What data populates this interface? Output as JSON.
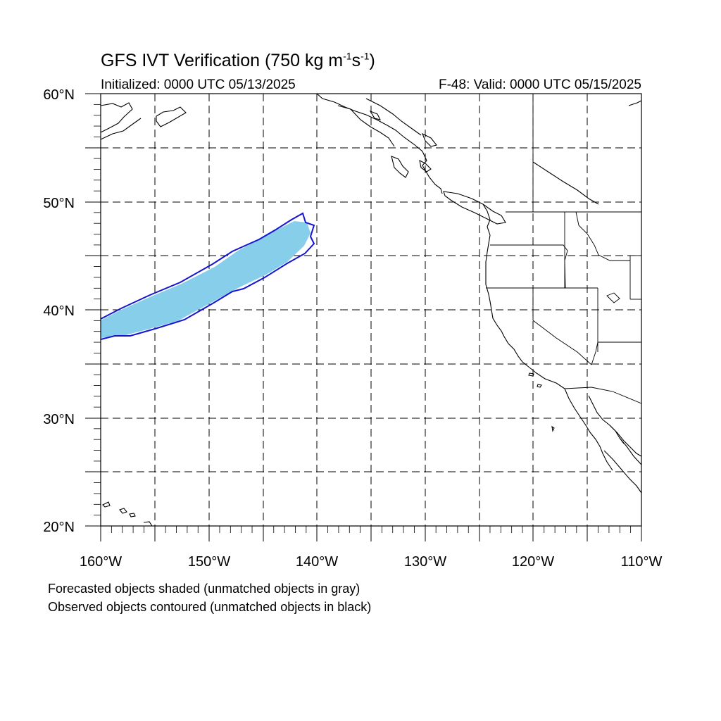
{
  "title": {
    "main": "GFS IVT Verification (750 kg m",
    "sup1": "-1",
    "mid": "s",
    "sup2": "-1",
    "end": ")"
  },
  "init_label": "Initialized: 0000 UTC 05/13/2025",
  "valid_label": "F-48: Valid: 0000 UTC 05/15/2025",
  "lat_labels": [
    "60°N",
    "50°N",
    "40°N",
    "30°N",
    "20°N"
  ],
  "lon_labels": [
    "160°W",
    "150°W",
    "140°W",
    "130°W",
    "120°W",
    "110°W"
  ],
  "notes": [
    "Forecasted objects shaded (unmatched objects in gray)",
    "Observed objects contoured (unmatched objects in black)"
  ],
  "colors": {
    "forecast_fill": "#87CEEB",
    "observed_contour": "#1414D2",
    "coastline": "#000000",
    "grid": "#000000"
  },
  "map": {
    "lon_range": [
      -160,
      -110
    ],
    "lat_range": [
      20,
      60
    ],
    "grid_spacing_deg": 5,
    "gridlines": "dashed"
  }
}
